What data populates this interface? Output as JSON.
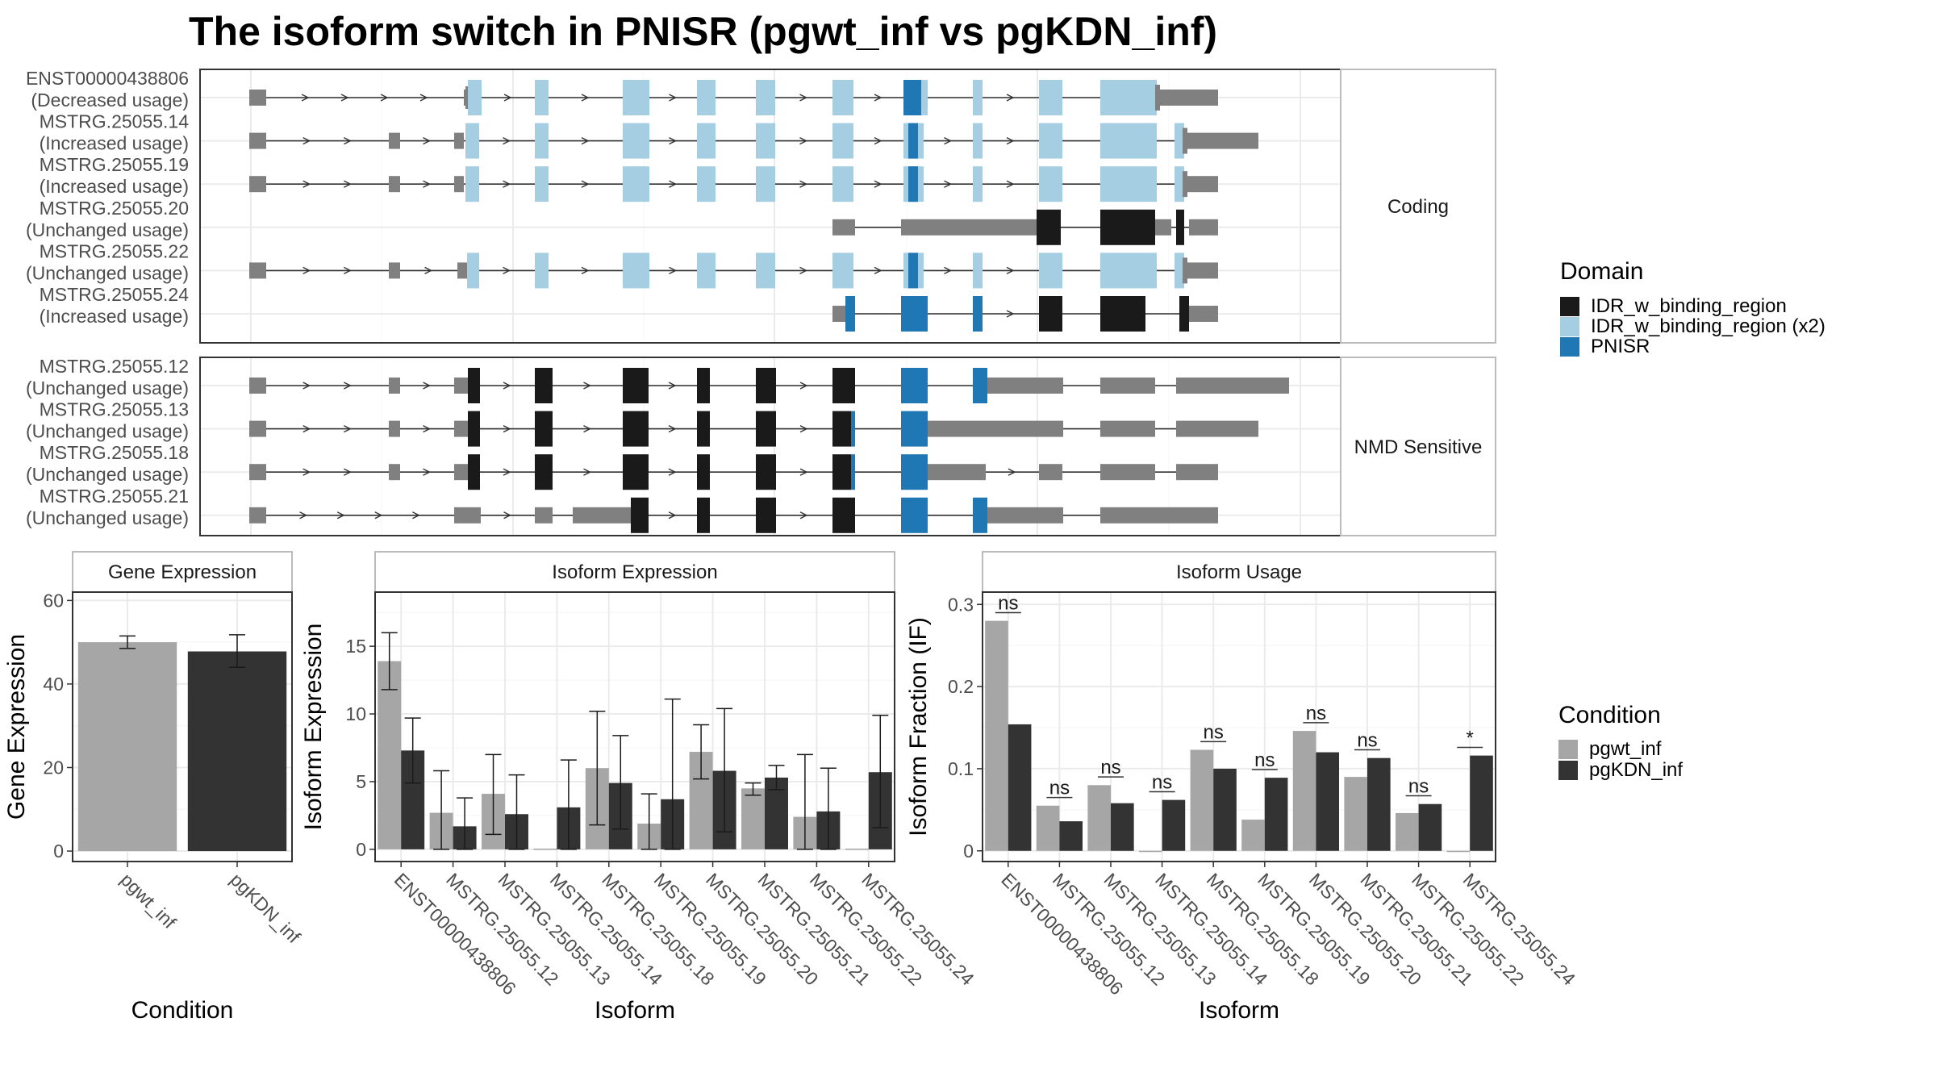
{
  "title": "The isoform switch in PNISR (pgwt_inf vs pgKDN_inf)",
  "colors": {
    "idr": "#1a1a1a",
    "idr_x2": "#a6cee3",
    "pnisr": "#1f78b4",
    "utr": "#808080",
    "pgwt_inf": "#a6a6a6",
    "pgKDN_inf": "#333333"
  },
  "structure": {
    "facets": [
      "Coding",
      "NMD Sensitive"
    ],
    "rows": [
      {
        "name": "ENST00000438806",
        "usage": "(Decreased usage)",
        "group": "Coding"
      },
      {
        "name": "MSTRG.25055.14",
        "usage": "(Increased usage)",
        "group": "Coding"
      },
      {
        "name": "MSTRG.25055.19",
        "usage": "(Increased usage)",
        "group": "Coding"
      },
      {
        "name": "MSTRG.25055.20",
        "usage": "(Unchanged usage)",
        "group": "Coding"
      },
      {
        "name": "MSTRG.25055.22",
        "usage": "(Unchanged usage)",
        "group": "Coding"
      },
      {
        "name": "MSTRG.25055.24",
        "usage": "(Increased usage)",
        "group": "Coding"
      },
      {
        "name": "MSTRG.25055.12",
        "usage": "(Unchanged usage)",
        "group": "NMD Sensitive"
      },
      {
        "name": "MSTRG.25055.13",
        "usage": "(Unchanged usage)",
        "group": "NMD Sensitive"
      },
      {
        "name": "MSTRG.25055.18",
        "usage": "(Unchanged usage)",
        "group": "NMD Sensitive"
      },
      {
        "name": "MSTRG.25055.21",
        "usage": "(Unchanged usage)",
        "group": "NMD Sensitive"
      }
    ]
  },
  "legend_domain": {
    "title": "Domain",
    "items": [
      {
        "label": "IDR_w_binding_region",
        "color": "#1a1a1a"
      },
      {
        "label": "IDR_w_binding_region (x2)",
        "color": "#a6cee3"
      },
      {
        "label": "PNISR",
        "color": "#1f78b4"
      }
    ]
  },
  "legend_condition": {
    "title": "Condition",
    "items": [
      {
        "label": "pgwt_inf",
        "color": "#a6a6a6"
      },
      {
        "label": "pgKDN_inf",
        "color": "#333333"
      }
    ]
  },
  "chart_data": [
    {
      "type": "bar",
      "title": "Gene Expression",
      "xlabel": "Condition",
      "ylabel": "Gene Expression",
      "categories": [
        "pgwt_inf",
        "pgKDN_inf"
      ],
      "values": [
        50,
        47.8
      ],
      "errors": [
        [
          48.5,
          51.5
        ],
        [
          44,
          51.8
        ]
      ],
      "ylim": [
        -2.5,
        62
      ],
      "yticks": [
        0,
        20,
        40,
        60
      ]
    },
    {
      "type": "bar",
      "title": "Isoform Expression",
      "xlabel": "Isoform",
      "ylabel": "Isoform Expression",
      "categories": [
        "ENST00000438806",
        "MSTRG.25055.12",
        "MSTRG.25055.13",
        "MSTRG.25055.14",
        "MSTRG.25055.18",
        "MSTRG.25055.19",
        "MSTRG.25055.20",
        "MSTRG.25055.21",
        "MSTRG.25055.22",
        "MSTRG.25055.24"
      ],
      "series": [
        {
          "name": "pgwt_inf",
          "values": [
            13.9,
            2.7,
            4.1,
            0.05,
            6.0,
            1.9,
            7.2,
            4.5,
            2.4,
            0.05
          ],
          "errors": [
            [
              11.8,
              16.0
            ],
            [
              0,
              5.8
            ],
            [
              1.1,
              7.0
            ],
            null,
            [
              1.8,
              10.2
            ],
            [
              0,
              4.1
            ],
            [
              5.2,
              9.2
            ],
            [
              4.0,
              4.9
            ],
            [
              0,
              7.0
            ],
            null
          ]
        },
        {
          "name": "pgKDN_inf",
          "values": [
            7.3,
            1.7,
            2.6,
            3.1,
            4.9,
            3.7,
            5.8,
            5.3,
            2.8,
            5.7
          ],
          "errors": [
            [
              4.9,
              9.7
            ],
            [
              0,
              3.8
            ],
            [
              0,
              5.5
            ],
            [
              0,
              6.6
            ],
            [
              1.5,
              8.4
            ],
            [
              0,
              11.1
            ],
            [
              1.3,
              10.4
            ],
            [
              4.4,
              6.2
            ],
            [
              0,
              6.0
            ],
            [
              1.6,
              9.9
            ]
          ]
        }
      ],
      "ylim": [
        -0.9,
        19
      ],
      "yticks": [
        0,
        5,
        10,
        15
      ]
    },
    {
      "type": "bar",
      "title": "Isoform Usage",
      "xlabel": "Isoform",
      "ylabel": "Isoform Fraction (IF)",
      "categories": [
        "ENST00000438806",
        "MSTRG.25055.12",
        "MSTRG.25055.13",
        "MSTRG.25055.14",
        "MSTRG.25055.18",
        "MSTRG.25055.19",
        "MSTRG.25055.20",
        "MSTRG.25055.21",
        "MSTRG.25055.22",
        "MSTRG.25055.24"
      ],
      "series": [
        {
          "name": "pgwt_inf",
          "values": [
            0.28,
            0.055,
            0.08,
            0.0,
            0.123,
            0.038,
            0.146,
            0.09,
            0.046,
            0.0
          ]
        },
        {
          "name": "pgKDN_inf",
          "values": [
            0.154,
            0.036,
            0.058,
            0.062,
            0.1,
            0.089,
            0.12,
            0.113,
            0.057,
            0.116
          ]
        }
      ],
      "significance": [
        "ns",
        "ns",
        "ns",
        "ns",
        "ns",
        "ns",
        "ns",
        "ns",
        "ns",
        "*"
      ],
      "ylim": [
        -0.013,
        0.315
      ],
      "yticks": [
        0.0,
        0.1,
        0.2,
        0.3
      ]
    }
  ]
}
